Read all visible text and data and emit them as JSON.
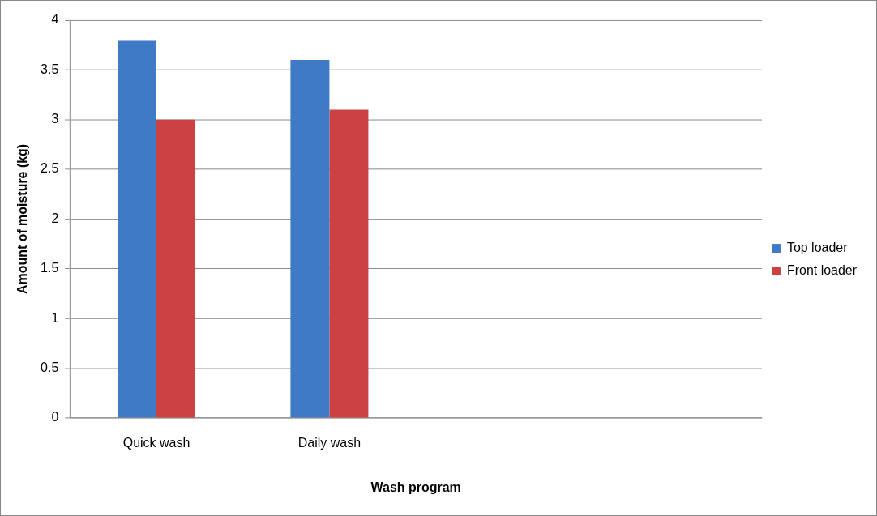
{
  "chart_data": {
    "type": "bar",
    "xlabel": "Wash program",
    "ylabel": "Amount of moisture (kg)",
    "categories": [
      "Quick wash",
      "Daily wash",
      null,
      null
    ],
    "series": [
      {
        "name": "Top loader",
        "color": "#3f7ac6",
        "values": [
          3.8,
          3.6,
          null,
          null
        ]
      },
      {
        "name": "Front loader",
        "color": "#cc4242",
        "values": [
          3.0,
          3.1,
          null,
          null
        ]
      }
    ],
    "ylim": [
      0,
      4
    ],
    "yticks": [
      0,
      0.5,
      1,
      1.5,
      2,
      2.5,
      3,
      3.5,
      4
    ],
    "grid": "y",
    "legend": "right"
  }
}
